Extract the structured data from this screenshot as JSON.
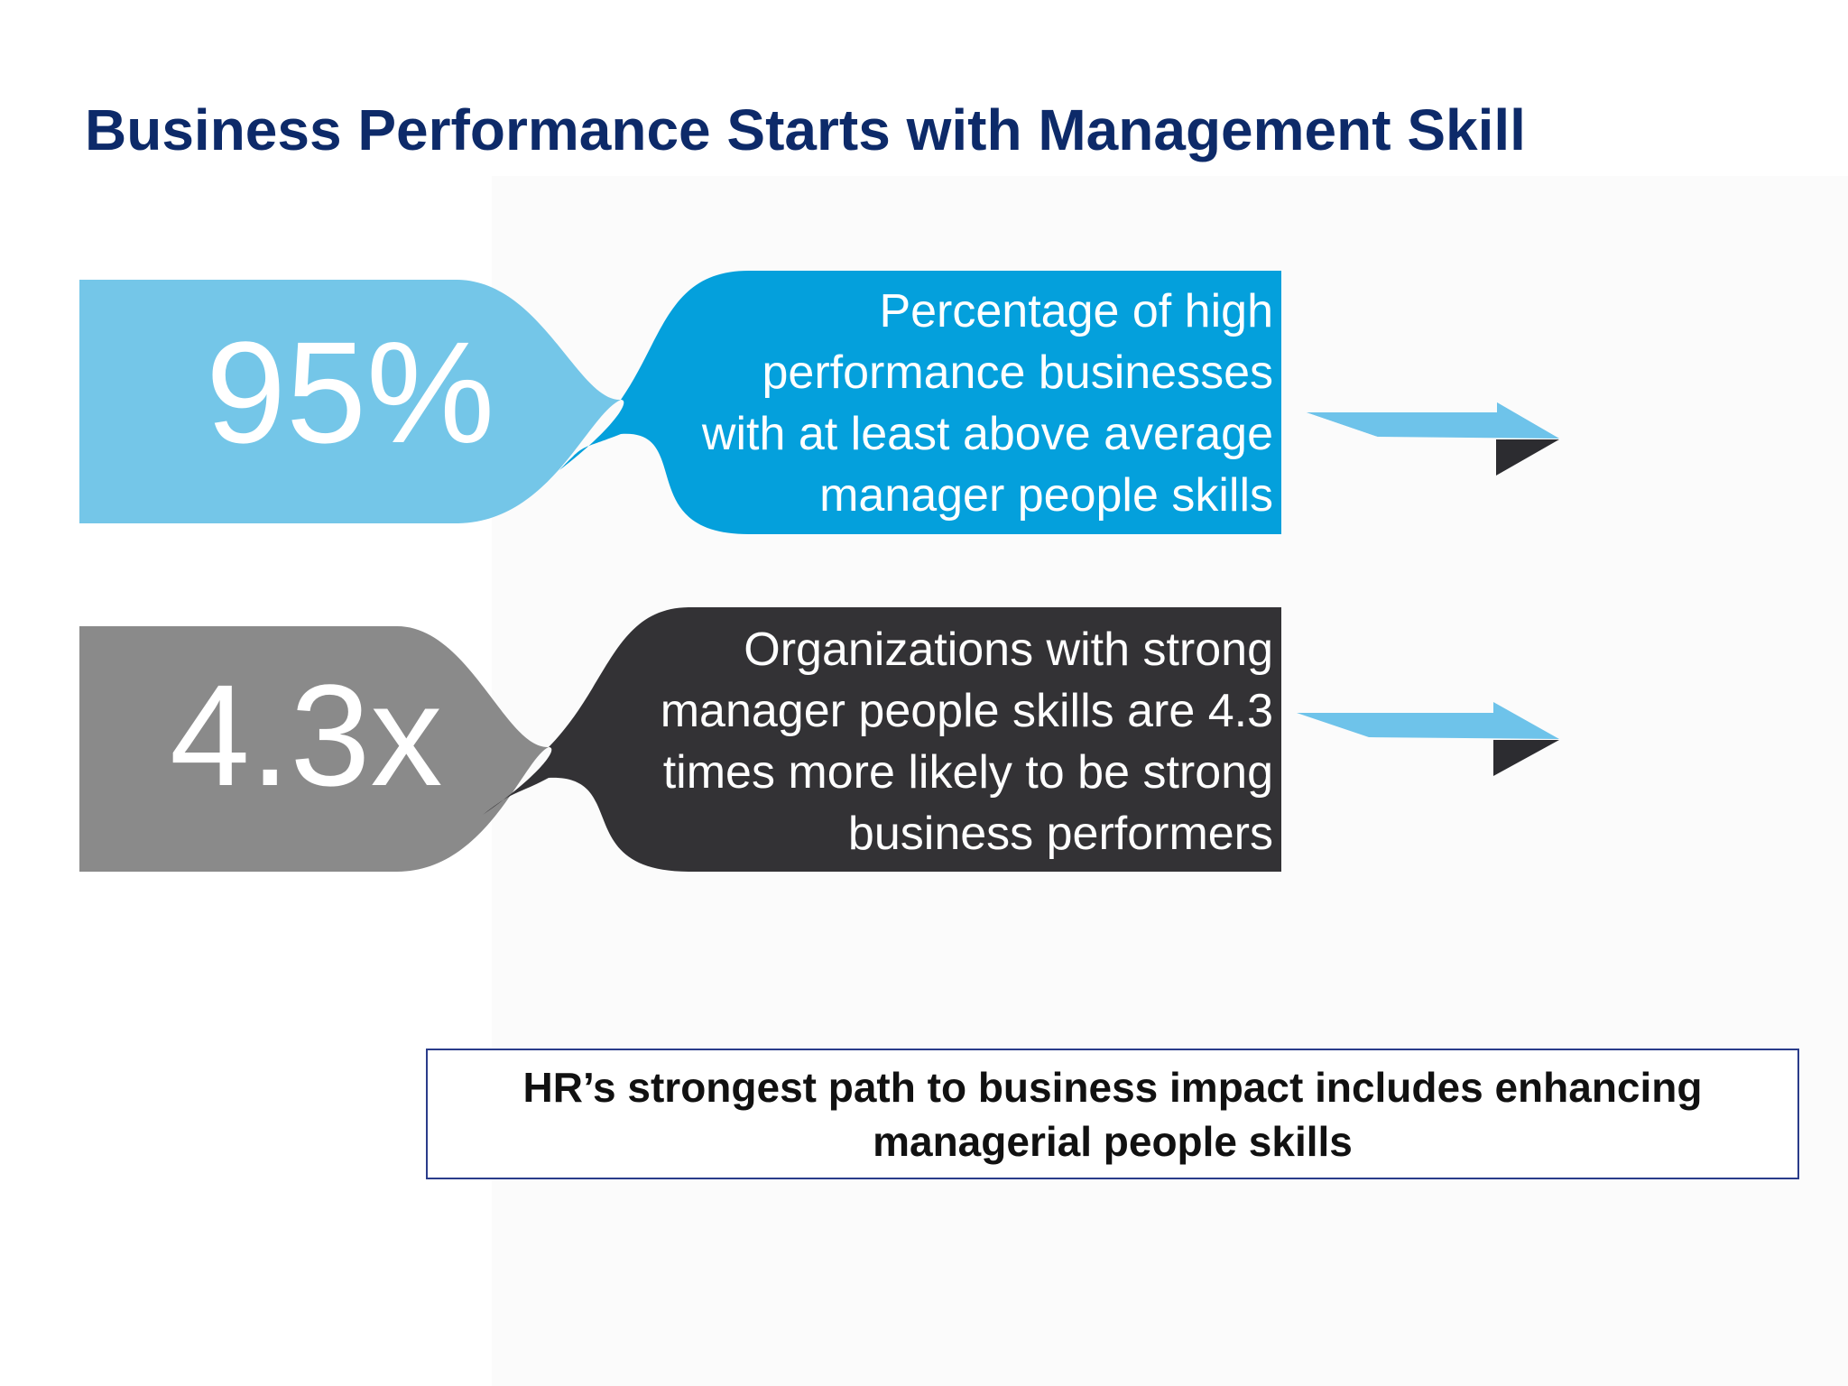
{
  "title": "Business Performance Starts with Management Skill",
  "stats": [
    {
      "value": "95%",
      "description_lines": [
        "Percentage of high",
        "performance businesses",
        "with at least above average",
        "manager people skills"
      ],
      "value_color": "#74c6e8",
      "description_color": "#04a0dc",
      "arrow_icon": "right-arrow-icon"
    },
    {
      "value": "4.3x",
      "description_lines": [
        "Organizations with strong",
        "manager people skills are 4.3",
        "times more likely to be strong",
        "business performers"
      ],
      "value_color": "#8a8a8a",
      "description_color": "#333235",
      "arrow_icon": "right-arrow-icon"
    }
  ],
  "callout": {
    "lines": [
      "HR’s strongest path to business impact includes enhancing",
      "managerial people skills"
    ],
    "border_color": "#2a3c8a"
  },
  "colors": {
    "title": "#0d2a69",
    "arrow_light": "#6ec3ea",
    "arrow_dark": "#2c2c30"
  }
}
